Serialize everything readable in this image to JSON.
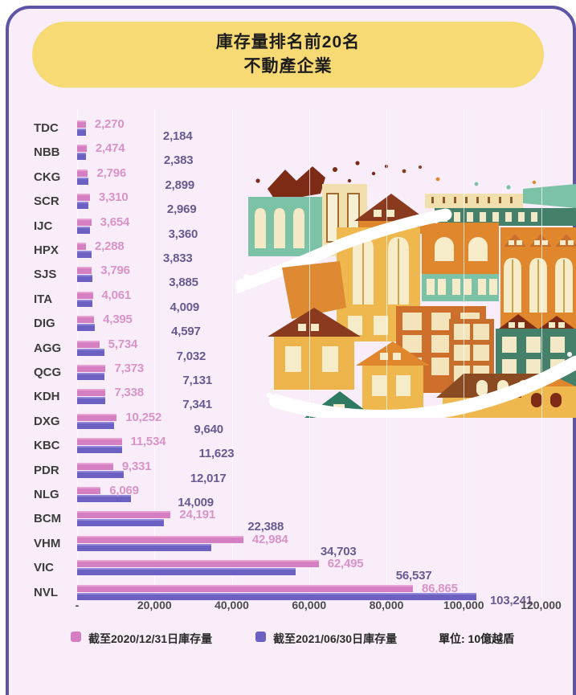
{
  "page": {
    "background": "#ffffff",
    "panel_bg": "#f8edf8",
    "panel_border_color": "#5c54a4"
  },
  "title": {
    "line1": "庫存量排名前20名",
    "line2": "不動產企業",
    "bg_color": "#f8da74",
    "text_color": "#1d1d1d"
  },
  "chart_data": {
    "type": "bar",
    "orientation": "horizontal",
    "title": "庫存量排名前20名 不動產企業",
    "unit_label": "單位: 10億越盾",
    "categories": [
      "TDC",
      "NBB",
      "CKG",
      "SCR",
      "IJC",
      "HPX",
      "SJS",
      "ITA",
      "DIG",
      "AGG",
      "QCG",
      "KDH",
      "DXG",
      "KBC",
      "PDR",
      "NLG",
      "BCM",
      "VHM",
      "VIC",
      "NVL"
    ],
    "series": [
      {
        "name": "截至2020/12/31日庫存量",
        "color": "#d57ec1",
        "label_color": "#da93c8",
        "values": [
          2270,
          2474,
          2796,
          3310,
          3654,
          2288,
          3796,
          4061,
          4395,
          5734,
          7373,
          7338,
          10252,
          11534,
          9331,
          6069,
          24191,
          42984,
          62495,
          86865
        ]
      },
      {
        "name": "截至2021/06/30日庫存量",
        "color": "#6d60c3",
        "label_color": "#675a92",
        "values": [
          2184,
          2383,
          2899,
          2969,
          3360,
          3833,
          3885,
          4009,
          4597,
          7032,
          7131,
          7341,
          9640,
          11623,
          12017,
          14009,
          22388,
          34703,
          56537,
          103241
        ]
      }
    ],
    "x_tick_labels": [
      "-",
      "20,000",
      "40,000",
      "60,000",
      "80,000",
      "100,000",
      "120,000"
    ],
    "x_tick_values": [
      0,
      20000,
      40000,
      60000,
      80000,
      100000,
      120000
    ],
    "xlim": [
      0,
      120000
    ],
    "grid": "vertical-light",
    "legend_position": "bottom"
  },
  "legend": {
    "unit_label": "單位: 10億越盾"
  },
  "illustration": {
    "name": "colorful-houses-brushstroke",
    "palette": [
      "#7cc2a7",
      "#44806a",
      "#eeb84e",
      "#e0862c",
      "#c96f2e",
      "#cf6f2c",
      "#8a3a1e",
      "#7d2b15",
      "#f4e9c6"
    ]
  }
}
